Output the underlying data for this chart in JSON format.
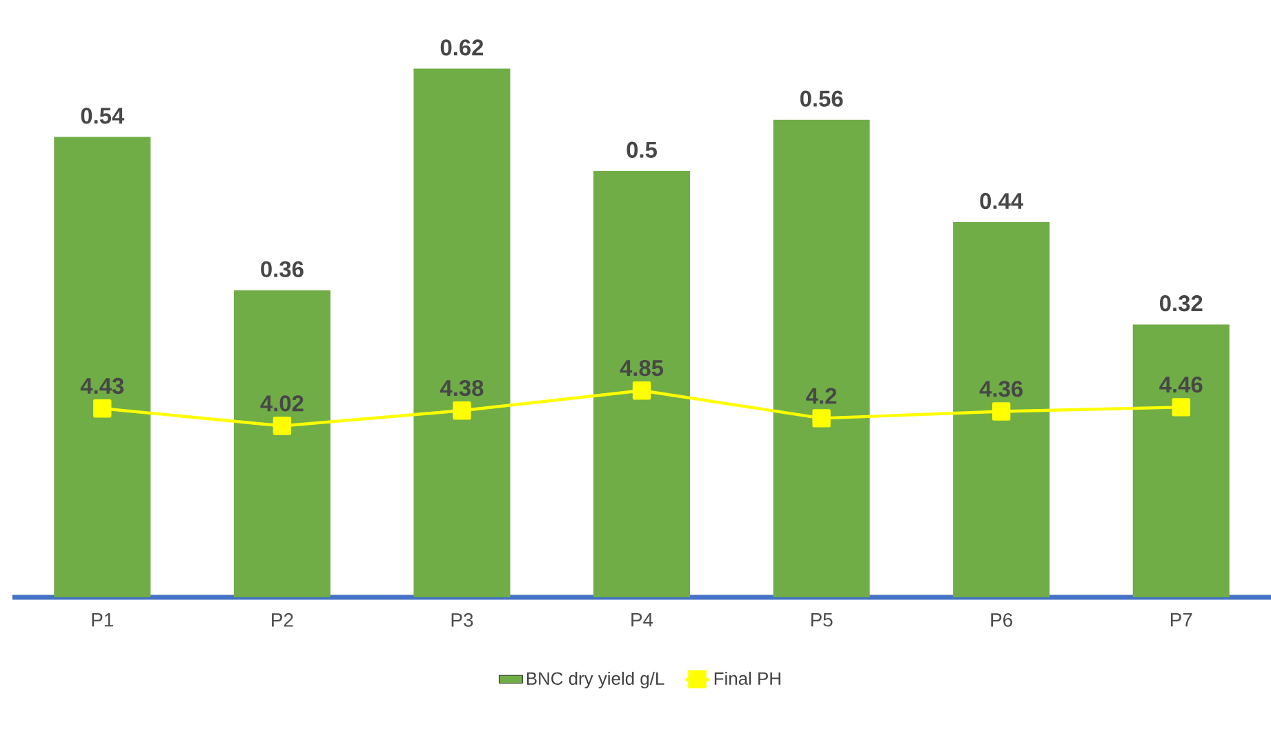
{
  "chart_data": {
    "type": "bar",
    "categories": [
      "P1",
      "P2",
      "P3",
      "P4",
      "P5",
      "P6",
      "P7"
    ],
    "series": [
      {
        "name": "BNC dry yield g/L",
        "color": "#70ad47",
        "values": [
          0.54,
          0.36,
          0.62,
          0.5,
          0.56,
          0.44,
          0.32
        ]
      },
      {
        "name": "Final PH",
        "type": "line",
        "axis": "y2",
        "color": "#ffff00",
        "marker": "square",
        "values": [
          4.43,
          4.02,
          4.38,
          4.85,
          4.2,
          4.36,
          4.46
        ]
      }
    ],
    "data_labels": true,
    "legend": "bottom",
    "tick_labels": "x"
  }
}
